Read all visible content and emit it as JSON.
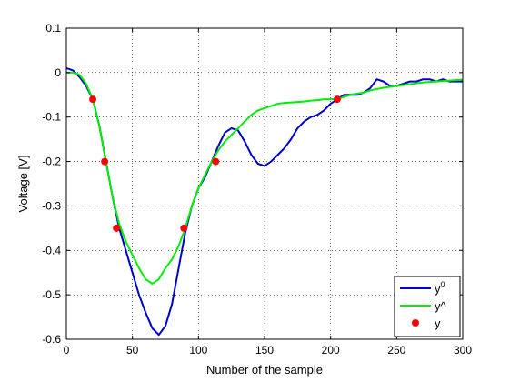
{
  "chart_data": {
    "type": "line",
    "title": "",
    "xlabel": "Number of the sample",
    "ylabel": "Voltage [V]",
    "xlim": [
      0,
      300
    ],
    "ylim": [
      -0.6,
      0.1
    ],
    "xticks": [
      0,
      50,
      100,
      150,
      200,
      250,
      300
    ],
    "yticks": [
      0.1,
      0,
      -0.1,
      -0.2,
      -0.3,
      -0.4,
      -0.5,
      -0.6
    ],
    "xtick_labels": [
      "0",
      "50",
      "100",
      "150",
      "200",
      "250",
      "300"
    ],
    "ytick_labels": [
      "0.1",
      "0",
      "-0.1",
      "-0.2",
      "-0.3",
      "-0.4",
      "-0.5",
      "-0.6"
    ],
    "grid": true,
    "legend_position": "bottom-right",
    "series": [
      {
        "name": "y",
        "name_sup": "0",
        "color": "#0000cc",
        "style": "line",
        "x": [
          0,
          5,
          10,
          15,
          20,
          25,
          30,
          35,
          40,
          45,
          50,
          55,
          60,
          65,
          70,
          75,
          80,
          85,
          90,
          95,
          100,
          105,
          110,
          115,
          120,
          125,
          130,
          135,
          140,
          145,
          150,
          155,
          160,
          165,
          170,
          175,
          180,
          185,
          190,
          195,
          200,
          205,
          210,
          215,
          220,
          225,
          230,
          235,
          240,
          245,
          250,
          255,
          260,
          265,
          270,
          275,
          280,
          285,
          290,
          295,
          300
        ],
        "values": [
          0.01,
          0.005,
          -0.01,
          -0.03,
          -0.06,
          -0.12,
          -0.2,
          -0.28,
          -0.35,
          -0.4,
          -0.45,
          -0.5,
          -0.54,
          -0.575,
          -0.59,
          -0.57,
          -0.52,
          -0.44,
          -0.36,
          -0.3,
          -0.26,
          -0.235,
          -0.2,
          -0.165,
          -0.135,
          -0.125,
          -0.13,
          -0.155,
          -0.185,
          -0.205,
          -0.21,
          -0.2,
          -0.185,
          -0.17,
          -0.15,
          -0.125,
          -0.11,
          -0.1,
          -0.095,
          -0.085,
          -0.07,
          -0.06,
          -0.05,
          -0.05,
          -0.05,
          -0.045,
          -0.035,
          -0.015,
          -0.02,
          -0.03,
          -0.03,
          -0.025,
          -0.02,
          -0.02,
          -0.015,
          -0.015,
          -0.02,
          -0.015,
          -0.02,
          -0.02,
          -0.02
        ]
      },
      {
        "name": "y^",
        "name_sup": "",
        "color": "#00ee00",
        "style": "line",
        "x": [
          0,
          5,
          10,
          15,
          20,
          25,
          30,
          35,
          40,
          45,
          50,
          55,
          60,
          65,
          70,
          75,
          80,
          85,
          90,
          95,
          100,
          105,
          110,
          115,
          120,
          125,
          130,
          135,
          140,
          145,
          150,
          155,
          160,
          165,
          170,
          175,
          180,
          185,
          190,
          195,
          200,
          205,
          210,
          215,
          220,
          225,
          230,
          235,
          240,
          245,
          250,
          255,
          260,
          265,
          270,
          275,
          280,
          285,
          290,
          295,
          300
        ],
        "values": [
          0.0,
          0.0,
          -0.005,
          -0.025,
          -0.06,
          -0.12,
          -0.2,
          -0.28,
          -0.34,
          -0.38,
          -0.41,
          -0.44,
          -0.465,
          -0.475,
          -0.465,
          -0.44,
          -0.42,
          -0.39,
          -0.35,
          -0.3,
          -0.26,
          -0.23,
          -0.2,
          -0.175,
          -0.155,
          -0.14,
          -0.125,
          -0.11,
          -0.095,
          -0.085,
          -0.08,
          -0.075,
          -0.07,
          -0.068,
          -0.067,
          -0.066,
          -0.065,
          -0.063,
          -0.062,
          -0.06,
          -0.06,
          -0.06,
          -0.055,
          -0.05,
          -0.047,
          -0.045,
          -0.04,
          -0.037,
          -0.034,
          -0.032,
          -0.03,
          -0.028,
          -0.026,
          -0.024,
          -0.022,
          -0.021,
          -0.02,
          -0.019,
          -0.018,
          -0.017,
          -0.016
        ]
      },
      {
        "name": "y",
        "name_sup": "",
        "color": "#ff0000",
        "style": "points",
        "x": [
          20,
          29,
          38,
          89,
          113,
          205
        ],
        "values": [
          -0.06,
          -0.2,
          -0.35,
          -0.35,
          -0.2,
          -0.06
        ]
      }
    ]
  }
}
